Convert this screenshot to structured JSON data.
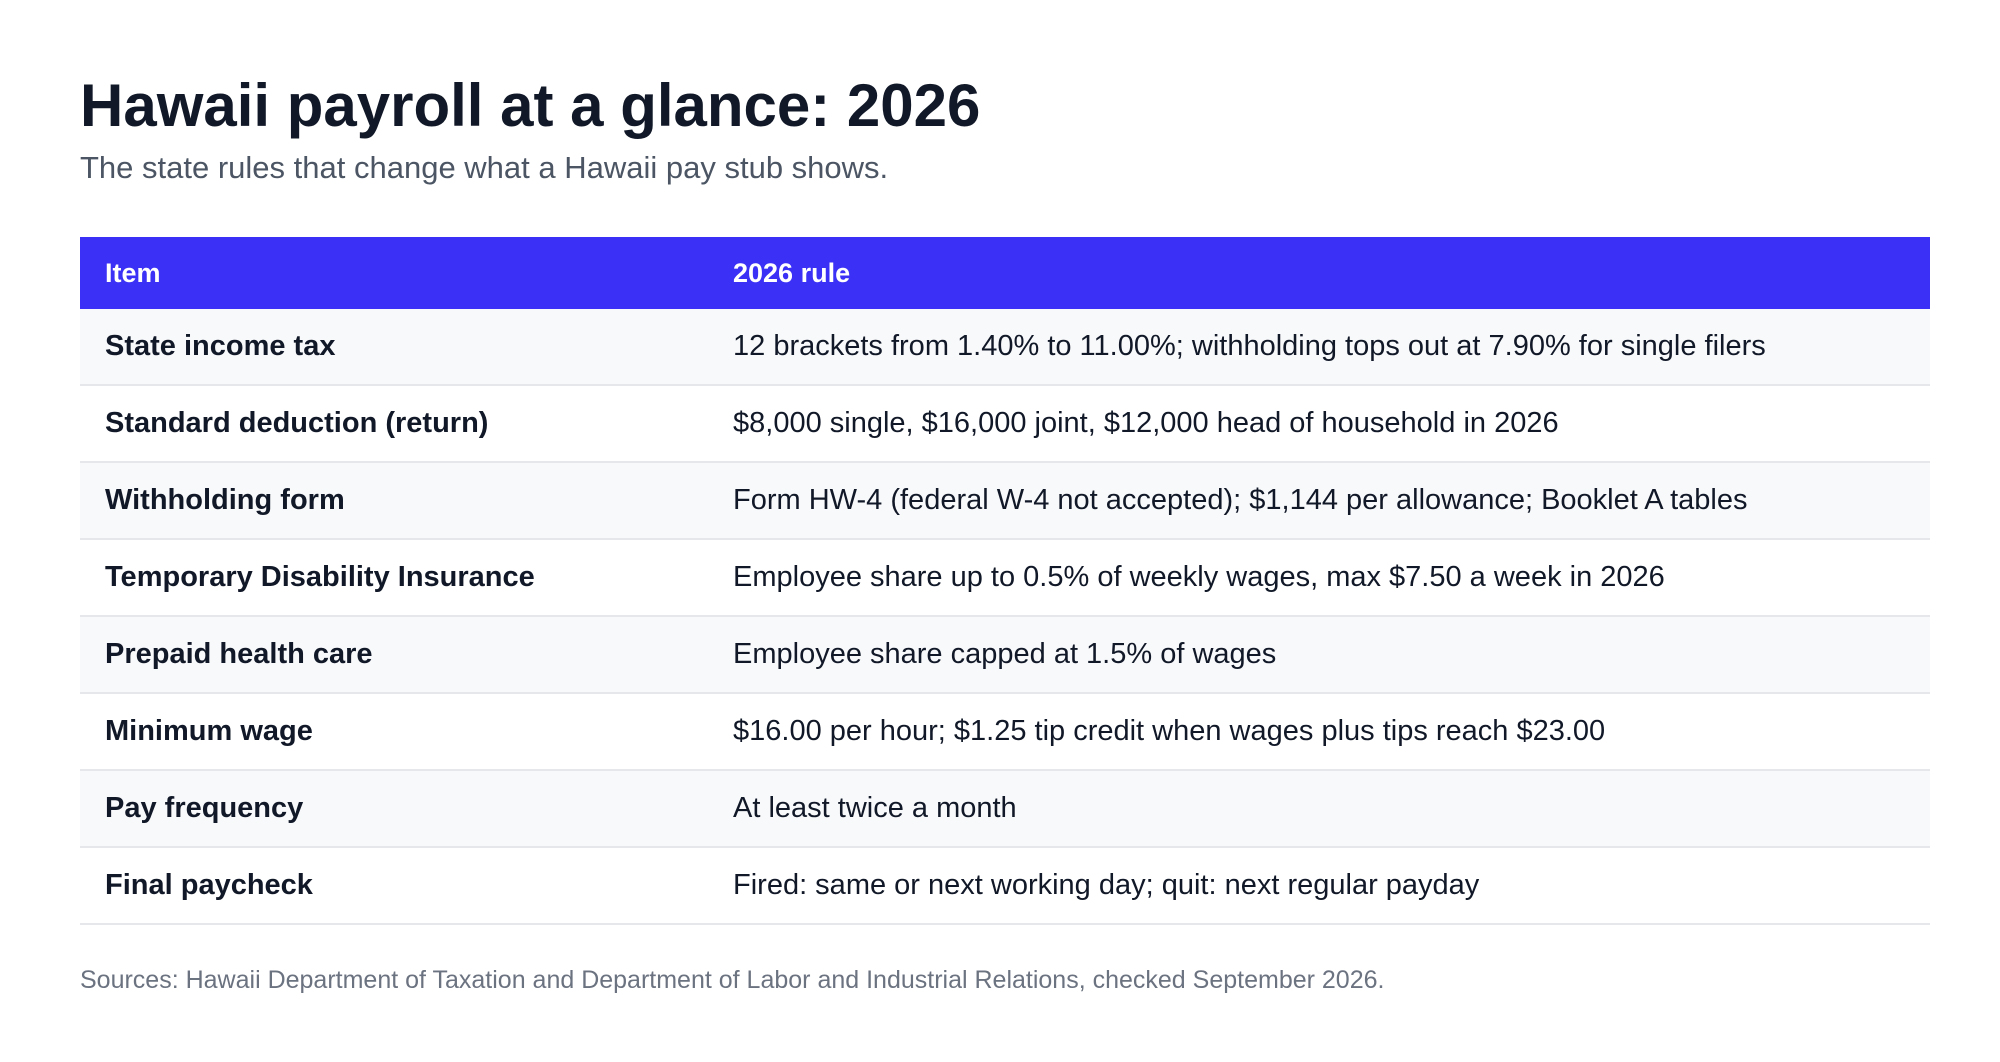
{
  "header": {
    "title": "Hawaii payroll at a glance: 2026",
    "subtitle": "The state rules that change what a Hawaii pay stub shows."
  },
  "table": {
    "columns": [
      "Item",
      "2026 rule"
    ],
    "rows": [
      {
        "item": "State income tax",
        "rule": "12 brackets from 1.40% to 11.00%; withholding tops out at 7.90% for single filers"
      },
      {
        "item": "Standard deduction (return)",
        "rule": "$8,000 single, $16,000 joint, $12,000 head of household in 2026"
      },
      {
        "item": "Withholding form",
        "rule": "Form HW-4 (federal W-4 not accepted); $1,144 per allowance; Booklet A tables"
      },
      {
        "item": "Temporary Disability Insurance",
        "rule": "Employee share up to 0.5% of weekly wages, max $7.50 a week in 2026"
      },
      {
        "item": "Prepaid health care",
        "rule": "Employee share capped at 1.5% of wages"
      },
      {
        "item": "Minimum wage",
        "rule": "$16.00 per hour; $1.25 tip credit when wages plus tips reach $23.00"
      },
      {
        "item": "Pay frequency",
        "rule": "At least twice a month"
      },
      {
        "item": "Final paycheck",
        "rule": "Fired: same or next working day; quit: next regular payday"
      }
    ]
  },
  "footer": {
    "sources": "Sources: Hawaii Department of Taxation and Department of Labor and Industrial Relations, checked September 2026."
  },
  "colors": {
    "header_bg": "#3b30f5",
    "header_text": "#ffffff",
    "title_text": "#111827",
    "subtitle_text": "#4b5563",
    "row_alt_bg": "#f8f9fb",
    "row_border": "#e5e7eb",
    "sources_text": "#6b7280"
  }
}
